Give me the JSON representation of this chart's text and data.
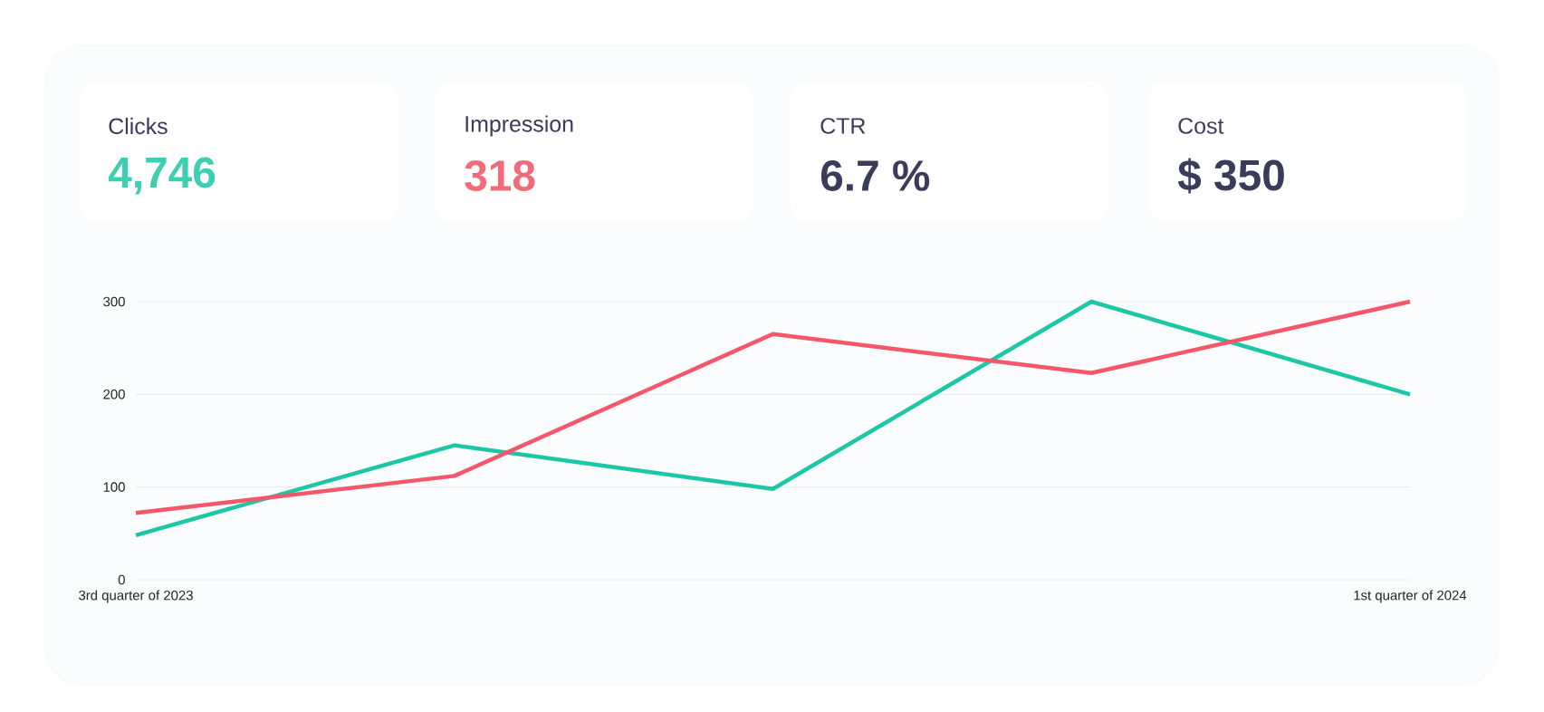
{
  "chart_data": [
    {
      "type": "other",
      "annotations": [
        "Clicks",
        "4,746",
        "Impression",
        "318",
        "CTR",
        "6.7 %",
        "Cost",
        "$ 350"
      ],
      "colors": [
        "#3b3b5c",
        "#3ecfb2",
        "#3b3b5c",
        "#f26b7a",
        "#3b3b5c",
        "#3b3b5c",
        "#3b3b5c",
        "#3b3b5c"
      ]
    },
    {
      "type": "line",
      "categories": [
        "3rd quarter of 2023",
        null,
        null,
        null,
        "1st quarter of 2024"
      ],
      "ylim": [
        0,
        300
      ],
      "yticks": [
        0,
        100,
        200,
        300
      ],
      "grid": "y",
      "series": [
        {
          "color": "#1cc7a7",
          "values": [
            48,
            145,
            98,
            300,
            200
          ]
        },
        {
          "color": "#f4566a",
          "values": [
            72,
            112,
            265,
            223,
            300
          ]
        }
      ]
    }
  ]
}
